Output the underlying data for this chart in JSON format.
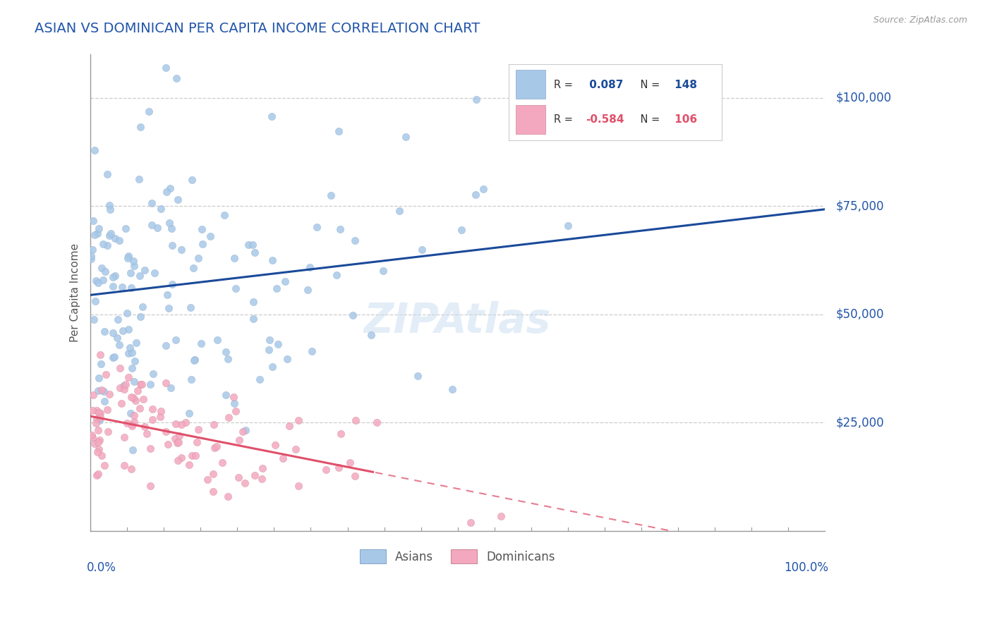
{
  "title": "ASIAN VS DOMINICAN PER CAPITA INCOME CORRELATION CHART",
  "source": "Source: ZipAtlas.com",
  "ylabel": "Per Capita Income",
  "ymin": 0,
  "ymax": 110000,
  "xmin": 0.0,
  "xmax": 100.0,
  "asian_color": "#a8c8e8",
  "dominican_color": "#f4a8c0",
  "asian_line_color": "#1a4a9a",
  "dominican_line_color": "#e0506a",
  "asian_R": 0.087,
  "asian_N": 148,
  "dominican_R": -0.584,
  "dominican_N": 106,
  "watermark": "ZIPAtlas",
  "legend_asian": "Asians",
  "legend_dominican": "Dominicans",
  "grid_color": "#cccccc",
  "title_color": "#2255aa",
  "ytick_color": "#2255aa",
  "xtick_color": "#2255aa",
  "ytick_values": [
    25000,
    50000,
    75000,
    100000
  ],
  "ytick_labels": [
    "$25,000",
    "$50,000",
    "$75,000",
    "$100,000"
  ]
}
